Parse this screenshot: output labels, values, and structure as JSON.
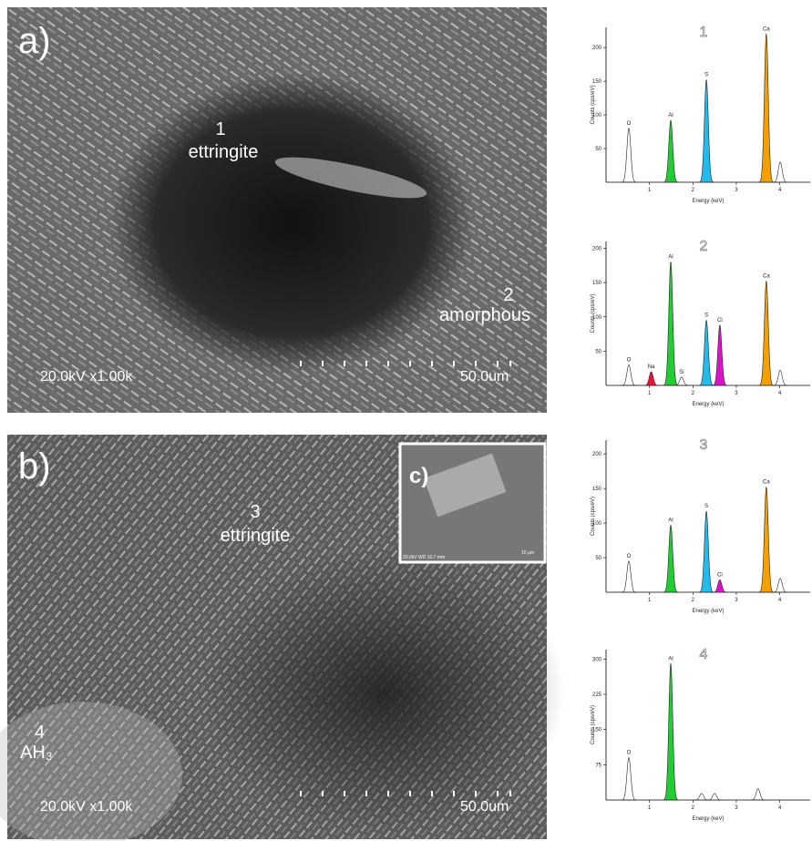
{
  "images": [
    {
      "panel": "a)",
      "labels": [
        "1",
        "ettringite",
        "2",
        "amorphous"
      ],
      "info": "20.0kV x1.00k",
      "scale": "50.0um"
    },
    {
      "panel": "b)",
      "labels": [
        "3",
        "ettringite",
        "4",
        "AH₃"
      ],
      "info": "20.0kV x1.00k",
      "scale": "50.0um",
      "inset": {
        "panel": "c)",
        "info": "20.0kV WD 10.7 mm",
        "scale": "10 µm"
      }
    }
  ],
  "chart_data": [
    {
      "type": "spectrum",
      "title": "1",
      "x_label": "Energy (keV)",
      "y_label": "Counts (cps/eV)",
      "xlim": [
        0,
        4.7
      ],
      "xticks": [
        1,
        2,
        3,
        4
      ],
      "ylim": [
        0,
        230
      ],
      "yticks": [
        50,
        100,
        150,
        200
      ],
      "peaks": [
        {
          "label": "O",
          "energy": 0.525,
          "counts": 80
        },
        {
          "label": "Al",
          "energy": 1.49,
          "counts": 92,
          "color": "#22cc33"
        },
        {
          "label": "S",
          "energy": 2.31,
          "counts": 152,
          "color": "#22bbee"
        },
        {
          "label": "Ca",
          "energy": 3.69,
          "counts": 220,
          "color": "#f5a000"
        },
        {
          "label": null,
          "energy": 4.01,
          "counts": 30
        }
      ]
    },
    {
      "type": "spectrum",
      "title": "2",
      "x_label": "Energy (keV)",
      "y_label": "Counts (cps/eV)",
      "xlim": [
        0,
        4.7
      ],
      "xticks": [
        1,
        2,
        3,
        4
      ],
      "ylim": [
        0,
        210
      ],
      "yticks": [
        50,
        100,
        150,
        200
      ],
      "peaks": [
        {
          "label": "O",
          "energy": 0.525,
          "counts": 30
        },
        {
          "label": "Na",
          "energy": 1.04,
          "counts": 20,
          "color": "#ee1133"
        },
        {
          "label": "Al",
          "energy": 1.49,
          "counts": 180,
          "color": "#22cc33"
        },
        {
          "label": "Si",
          "energy": 1.74,
          "counts": 12
        },
        {
          "label": "S",
          "energy": 2.31,
          "counts": 95,
          "color": "#22bbee"
        },
        {
          "label": "Cl",
          "energy": 2.62,
          "counts": 88,
          "color": "#dd11cc"
        },
        {
          "label": "Ca",
          "energy": 3.69,
          "counts": 152,
          "color": "#f5a000"
        },
        {
          "label": null,
          "energy": 4.01,
          "counts": 22
        }
      ]
    },
    {
      "type": "spectrum",
      "title": "3",
      "x_label": "Energy (keV)",
      "y_label": "Counts (cps/eV)",
      "xlim": [
        0,
        4.7
      ],
      "xticks": [
        1,
        2,
        3,
        4
      ],
      "ylim": [
        0,
        220
      ],
      "yticks": [
        50,
        100,
        150,
        200
      ],
      "peaks": [
        {
          "label": "O",
          "energy": 0.525,
          "counts": 45
        },
        {
          "label": "Al",
          "energy": 1.49,
          "counts": 97,
          "color": "#22cc33"
        },
        {
          "label": "S",
          "energy": 2.31,
          "counts": 117,
          "color": "#22bbee"
        },
        {
          "label": "Cl",
          "energy": 2.62,
          "counts": 18,
          "color": "#dd11cc"
        },
        {
          "label": "Ca",
          "energy": 3.69,
          "counts": 152,
          "color": "#f5a000"
        },
        {
          "label": null,
          "energy": 4.01,
          "counts": 20
        }
      ]
    },
    {
      "type": "spectrum",
      "title": "4",
      "x_label": "Energy (keV)",
      "y_label": "Counts (cps/eV)",
      "xlim": [
        0,
        4.7
      ],
      "xticks": [
        1,
        2,
        3,
        4
      ],
      "ylim": [
        0,
        320
      ],
      "yticks": [
        75,
        150,
        225,
        300
      ],
      "peaks": [
        {
          "label": "O",
          "energy": 0.525,
          "counts": 90
        },
        {
          "label": "Al",
          "energy": 1.49,
          "counts": 290,
          "color": "#22cc33"
        },
        {
          "label": null,
          "energy": 2.2,
          "counts": 14
        },
        {
          "label": null,
          "energy": 2.5,
          "counts": 14
        },
        {
          "label": null,
          "energy": 3.5,
          "counts": 24
        }
      ]
    }
  ]
}
